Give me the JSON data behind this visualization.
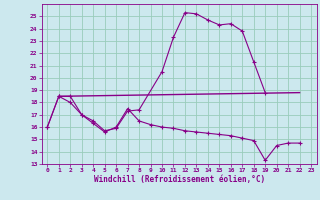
{
  "xlabel": "Windchill (Refroidissement éolien,°C)",
  "bg_color": "#cce8ee",
  "grid_color": "#99ccbb",
  "line_color": "#880088",
  "xlim": [
    -0.5,
    23.5
  ],
  "ylim": [
    13,
    26
  ],
  "yticks": [
    13,
    14,
    15,
    16,
    17,
    18,
    19,
    20,
    21,
    22,
    23,
    24,
    25
  ],
  "xticks": [
    0,
    1,
    2,
    3,
    4,
    5,
    6,
    7,
    8,
    9,
    10,
    11,
    12,
    13,
    14,
    15,
    16,
    17,
    18,
    19,
    20,
    21,
    22,
    23
  ],
  "series1_x": [
    0,
    1,
    2,
    3,
    4,
    5,
    6,
    7,
    8,
    10,
    11,
    12,
    13,
    14,
    15,
    16,
    17,
    18,
    19
  ],
  "series1_y": [
    16.0,
    18.5,
    18.5,
    17.0,
    16.5,
    15.7,
    15.9,
    17.3,
    17.4,
    20.5,
    23.3,
    25.3,
    25.2,
    24.7,
    24.3,
    24.4,
    23.8,
    21.3,
    18.8
  ],
  "series2_x": [
    0,
    1,
    2,
    3,
    4,
    5,
    6,
    7,
    8,
    9,
    10,
    11,
    12,
    13,
    14,
    15,
    16,
    17,
    18,
    19,
    20,
    21,
    22
  ],
  "series2_y": [
    16.0,
    18.5,
    18.0,
    17.0,
    16.3,
    15.6,
    16.0,
    17.5,
    16.5,
    16.2,
    16.0,
    15.9,
    15.7,
    15.6,
    15.5,
    15.4,
    15.3,
    15.1,
    14.9,
    13.3,
    14.5,
    14.7,
    14.7
  ],
  "series3_x": [
    1,
    22
  ],
  "series3_y": [
    18.5,
    18.8
  ]
}
